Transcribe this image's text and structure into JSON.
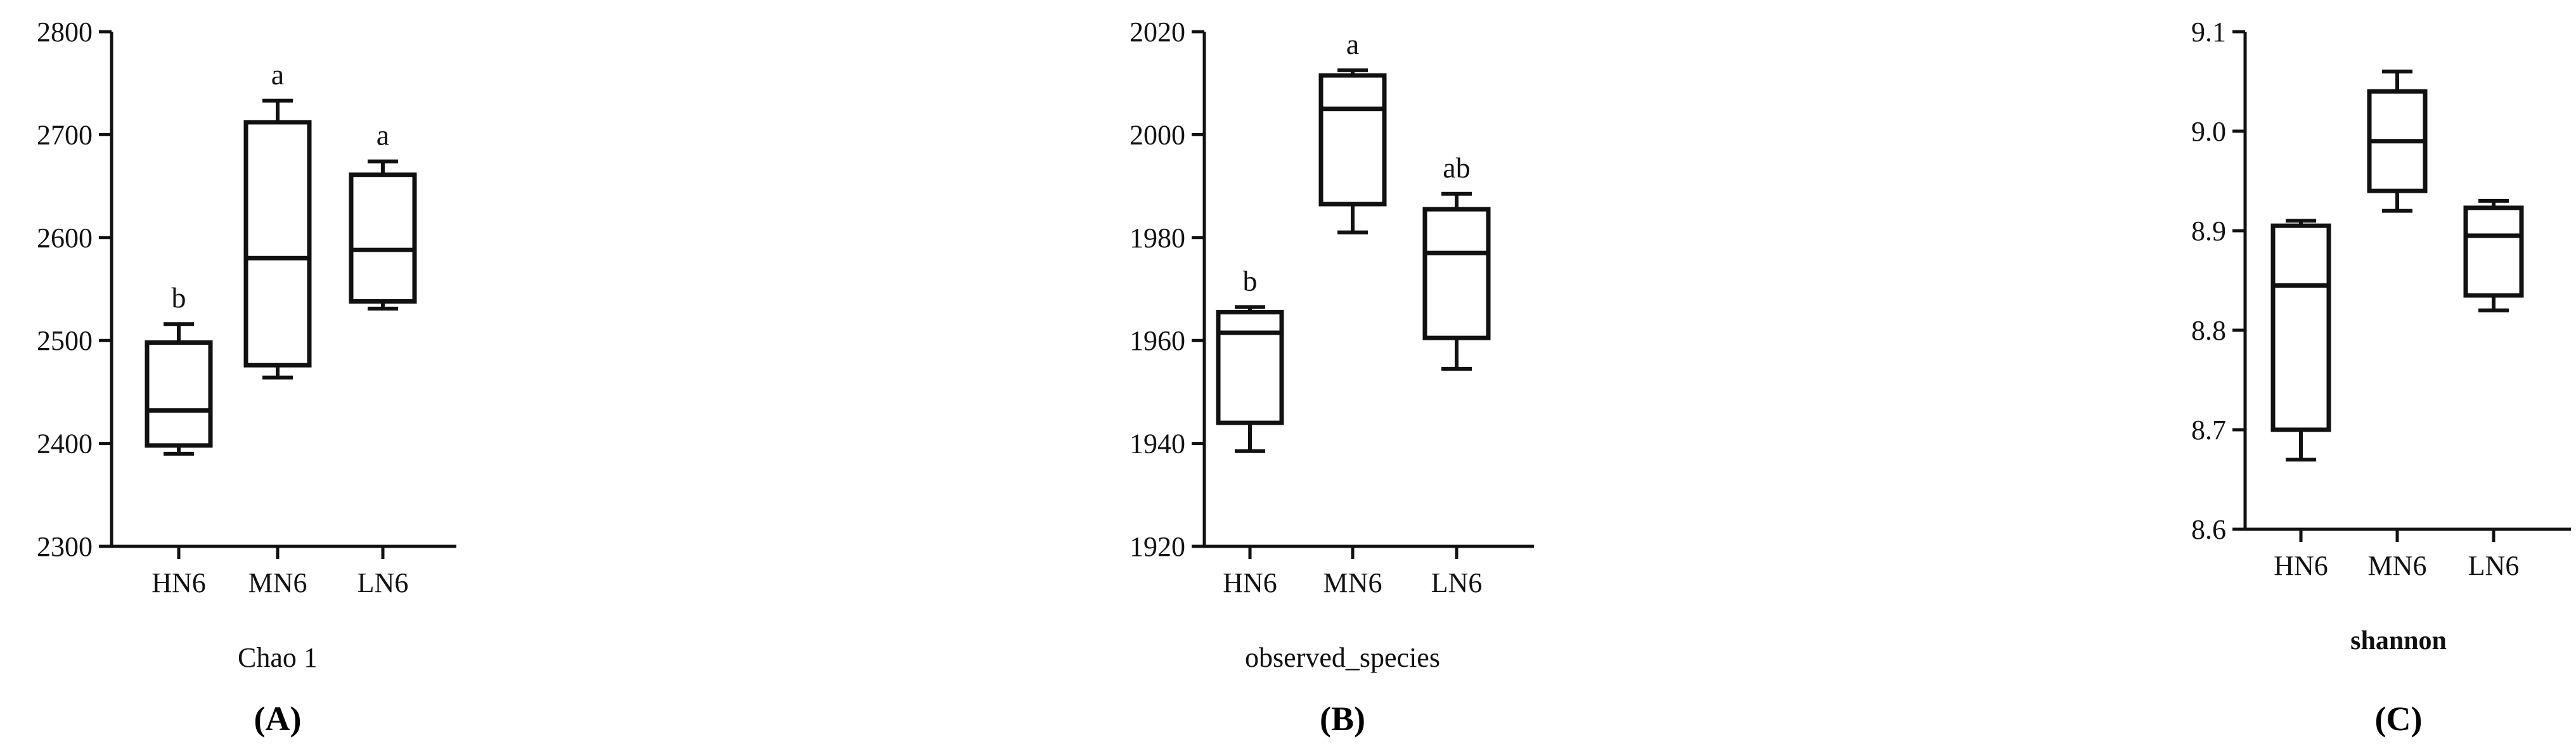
{
  "chart_data": [
    {
      "type": "box",
      "panel_label": "(A)",
      "xlabel": "Chao 1",
      "ylabel": "",
      "ylim": [
        2300,
        2800
      ],
      "yticks": [
        2300,
        2400,
        2500,
        2600,
        2700,
        2800
      ],
      "categories": [
        "HN6",
        "MN6",
        "LN6"
      ],
      "boxes": [
        {
          "category": "HN6",
          "min": 2390,
          "q1": 2398,
          "median": 2432,
          "q3": 2498,
          "max": 2516,
          "sig": "b"
        },
        {
          "category": "MN6",
          "min": 2464,
          "q1": 2476,
          "median": 2580,
          "q3": 2712,
          "max": 2733,
          "sig": "a"
        },
        {
          "category": "LN6",
          "min": 2531,
          "q1": 2538,
          "median": 2588,
          "q3": 2661,
          "max": 2674,
          "sig": "a"
        }
      ]
    },
    {
      "type": "box",
      "panel_label": "(B)",
      "xlabel": "observed_species",
      "ylabel": "",
      "ylim": [
        1920,
        2020
      ],
      "yticks": [
        1920,
        1940,
        1960,
        1980,
        2000,
        2020
      ],
      "categories": [
        "HN6",
        "MN6",
        "LN6"
      ],
      "boxes": [
        {
          "category": "HN6",
          "min": 1938.5,
          "q1": 1944,
          "median": 1961.5,
          "q3": 1965.5,
          "max": 1966.5,
          "sig": "b"
        },
        {
          "category": "MN6",
          "min": 1981,
          "q1": 1986.5,
          "median": 2005,
          "q3": 2011.5,
          "max": 2012.5,
          "sig": "a"
        },
        {
          "category": "LN6",
          "min": 1954.5,
          "q1": 1960.5,
          "median": 1977,
          "q3": 1985.5,
          "max": 1988.5,
          "sig": "ab"
        }
      ]
    },
    {
      "type": "box",
      "panel_label": "(C)",
      "xlabel": "shannon",
      "ylabel": "",
      "ylim": [
        8.6,
        9.1
      ],
      "yticks": [
        "8.6",
        "8.7",
        "8.8",
        "8.9",
        "9.0",
        "9.1"
      ],
      "categories": [
        "HN6",
        "MN6",
        "LN6"
      ],
      "boxes": [
        {
          "category": "HN6",
          "min": 8.67,
          "q1": 8.7,
          "median": 8.845,
          "q3": 8.905,
          "max": 8.91,
          "sig": ""
        },
        {
          "category": "MN6",
          "min": 8.92,
          "q1": 8.94,
          "median": 8.99,
          "q3": 9.04,
          "max": 9.06,
          "sig": ""
        },
        {
          "category": "LN6",
          "min": 8.82,
          "q1": 8.835,
          "median": 8.895,
          "q3": 8.923,
          "max": 8.93,
          "sig": ""
        }
      ]
    }
  ]
}
